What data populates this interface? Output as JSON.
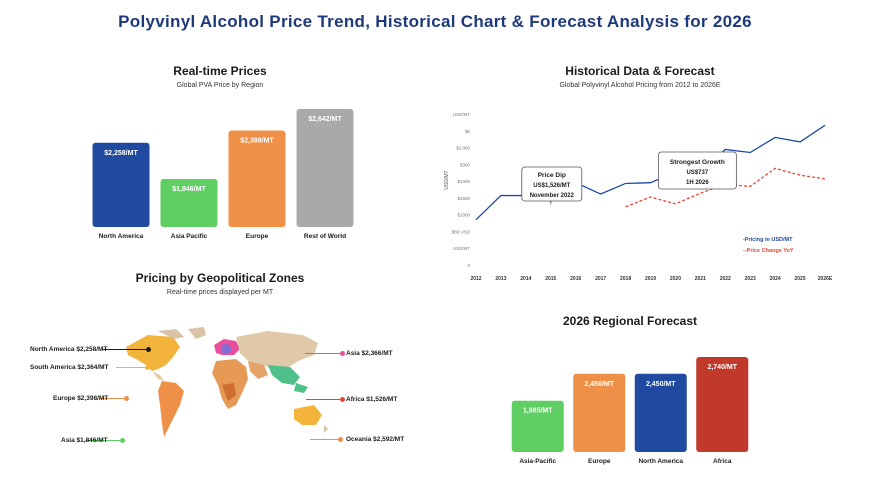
{
  "header": {
    "title": "Polyvinyl Alcohol Price Trend, Historical Chart & Forecast Analysis for 2026"
  },
  "realtime": {
    "title": "Real-time Prices",
    "subtitle": "Global PVA Price by Region"
  },
  "historical": {
    "title": "Historical Data & Forecast",
    "subtitle": "Global Polyvinyl Alcohol Pricing from 2012 to 2026E"
  },
  "geo": {
    "title": "Pricing by Geopolitical Zones",
    "subtitle": "Real-time prices displayed per MT"
  },
  "forecast": {
    "title": "2026 Regional Forecast"
  },
  "colors": {
    "blue": "#1f4aa0",
    "green": "#5fcf63",
    "orange": "#ef9048",
    "gray": "#a9a9a9",
    "red": "#c0392b",
    "title": "#1f3a7a",
    "pink": "#e84f9c"
  },
  "chart_data": [
    {
      "type": "bar",
      "categories": [
        "North America",
        "Asia Pacific",
        "Europe",
        "Rest of World"
      ],
      "values": [
        2258,
        1846,
        2398,
        2642
      ],
      "value_labels": [
        "$2,258/MT",
        "$1,846/MT",
        "$2,398/MT",
        "$2,642/MT"
      ],
      "colors": [
        "#1f4aa0",
        "#5fcf63",
        "#ef9048",
        "#a9a9a9"
      ]
    },
    {
      "type": "line",
      "x": [
        "2012",
        "2013",
        "2014",
        "2015",
        "2016",
        "2017",
        "2018",
        "2019",
        "2020",
        "2021",
        "2022",
        "2023",
        "2024",
        "2025",
        "2026E"
      ],
      "y_ticks": [
        "0",
        "USD/MT",
        "$80 USD",
        "$1000",
        "$2500",
        "$1000",
        "$300",
        "$2,000",
        "$6",
        "USD/MT"
      ],
      "ylabel": "USD/MT",
      "series": [
        {
          "name": "Pricing in USD/MT",
          "color": "#1f4aa0",
          "values": [
            300,
            460,
            460,
            540,
            545,
            470,
            540,
            545,
            615,
            618,
            765,
            745,
            845,
            815,
            925
          ]
        },
        {
          "name": "Price Change YoY",
          "color": "#e04a3a",
          "dashed": true,
          "values": [
            null,
            null,
            null,
            null,
            null,
            null,
            385,
            450,
            405,
            475,
            535,
            520,
            640,
            595,
            570
          ]
        }
      ],
      "annotations": [
        {
          "lines": [
            "Price Dip",
            "US$1,526/MT",
            "November 2022"
          ]
        },
        {
          "lines": [
            "Strongest Growth",
            "US$737",
            "1H 2026"
          ]
        }
      ]
    },
    {
      "type": "bar",
      "categories": [
        "Asia-Pacific",
        "Europe",
        "North America",
        "Africa"
      ],
      "values": [
        1985,
        2450,
        2450,
        2740
      ],
      "value_labels": [
        "1,985/MT",
        "2,450/MT",
        "2,450/MT",
        "2,740/MT"
      ],
      "colors": [
        "#5fcf63",
        "#ef9048",
        "#1f4aa0",
        "#c0392b"
      ]
    }
  ],
  "map_labels": {
    "north_america": "North America $2,258/MT",
    "south_america": "South America $2,364/MT",
    "europe": "Europe $2,398/MT",
    "asia_left": "Asia $1,846/MT",
    "asia_right": "Asia $2,366/MT",
    "africa": "Africa $1,526/MT",
    "oceania": "Oceania $2,592/MT"
  }
}
